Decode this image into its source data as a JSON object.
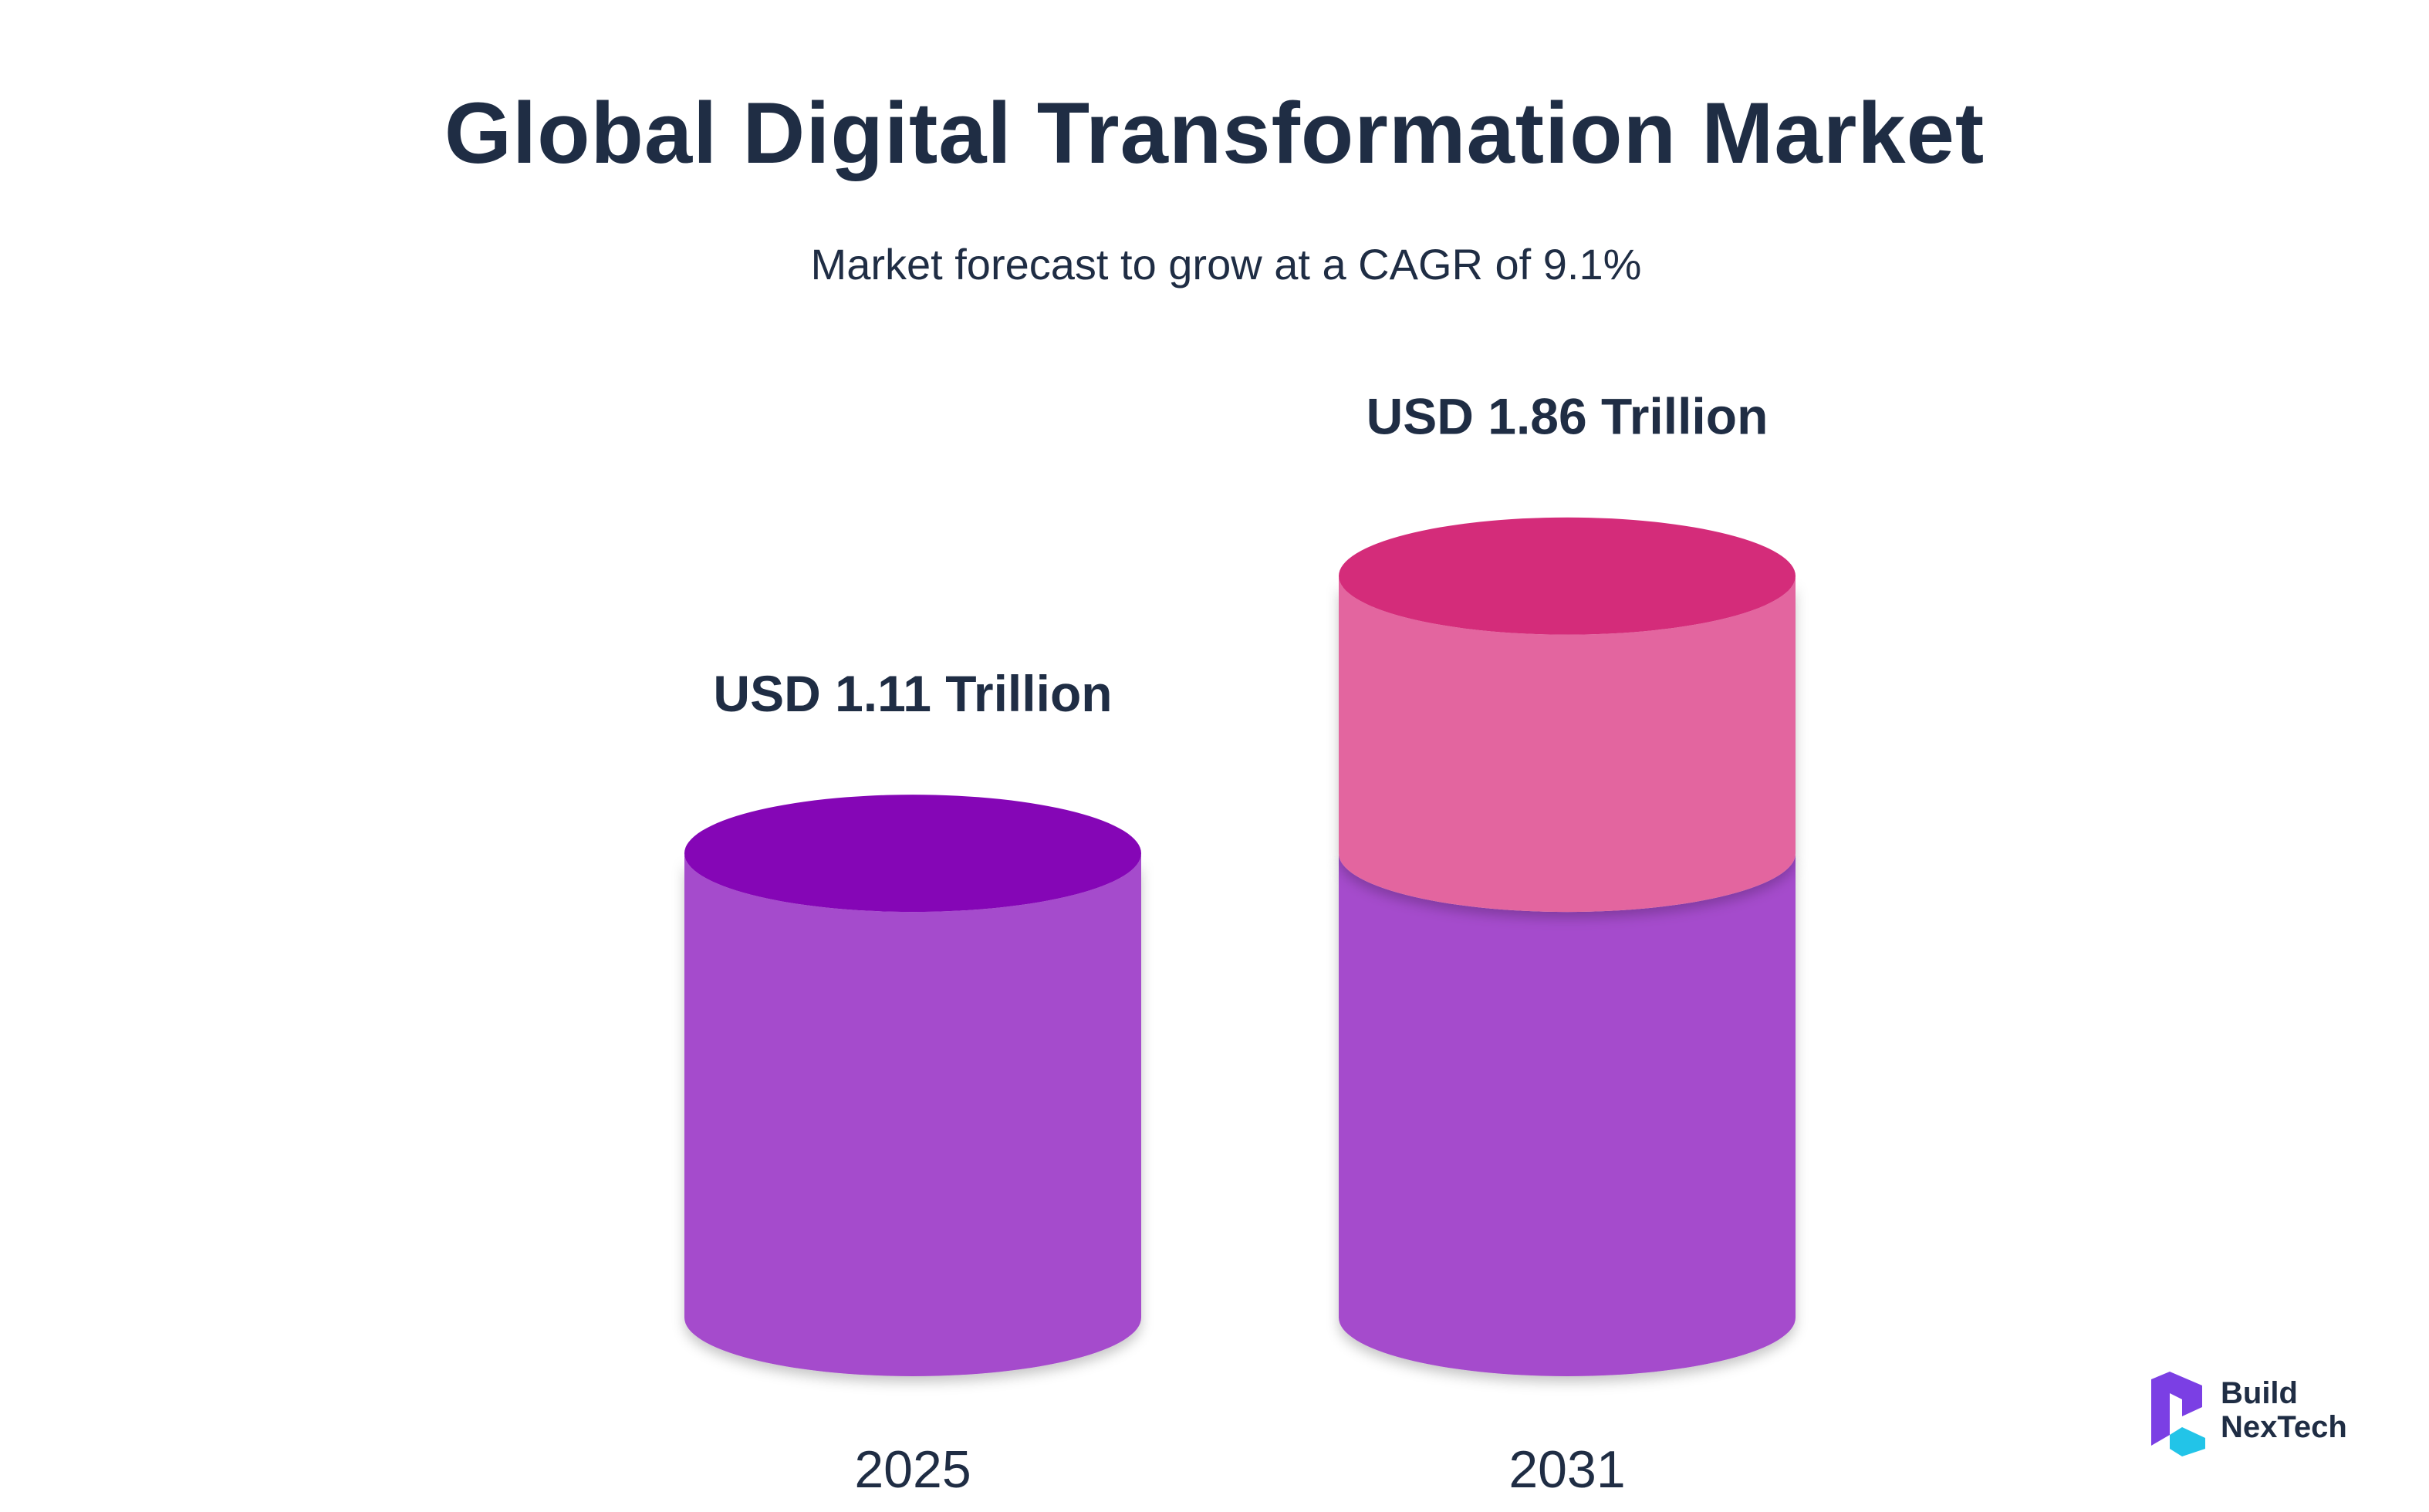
{
  "chart_data": {
    "type": "bar",
    "title": "Global Digital Transformation Market",
    "subtitle": "Market forecast to grow at a CAGR of 9.1%",
    "categories": [
      "2025",
      "2031"
    ],
    "values": [
      1.11,
      1.86
    ],
    "value_labels": [
      "USD 1.11 Trillion",
      "USD 1.86 Trillion"
    ],
    "unit": "USD Trillion",
    "base_value": 1.11,
    "cagr": "9.1%",
    "xlabel": "",
    "ylabel": "",
    "ylim": [
      0,
      2.0
    ],
    "grid": false,
    "colors": {
      "base_body": "#a54bcc",
      "base_top": "#8506b6",
      "growth_body": "#e3659f",
      "growth_top": "#d42c7a"
    }
  },
  "brand": {
    "line1": "Build",
    "line2": "NexTech",
    "colors": {
      "primary": "#7b3fe4",
      "secondary": "#22c4e8"
    }
  }
}
